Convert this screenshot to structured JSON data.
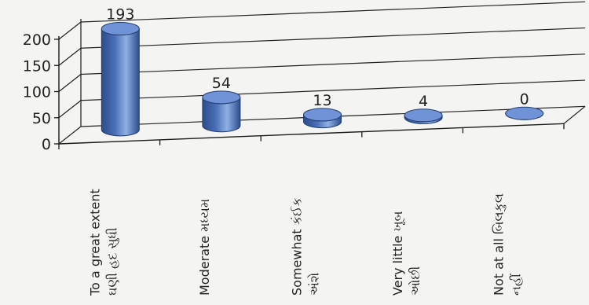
{
  "chart_data": {
    "type": "bar",
    "style": "3d-cylinder",
    "categories": [
      [
        "To a great extent",
        "ઘણી હદ સુધી"
      ],
      [
        "Moderate મધ્યમ"
      ],
      [
        "Somewhat કંઈક",
        "અંશે"
      ],
      [
        "Very little ખૂબ",
        "ઓછી"
      ],
      [
        "Not at all બિલકુલ",
        "નહીં"
      ]
    ],
    "values": [
      193,
      54,
      13,
      4,
      0
    ],
    "data_labels": [
      "193",
      "54",
      "13",
      "4",
      "0"
    ],
    "y_ticks": [
      "0",
      "50",
      "100",
      "150",
      "200"
    ],
    "ylim": [
      0,
      200
    ],
    "title": "",
    "xlabel": "",
    "ylabel": "",
    "grid": true,
    "legend": "none",
    "colors": {
      "bar": "#4a6fb5",
      "bar_dark": "#2c4c8c",
      "bar_light": "#8fb0e6",
      "axis": "#1a1a1a",
      "grid": "#222222"
    }
  }
}
